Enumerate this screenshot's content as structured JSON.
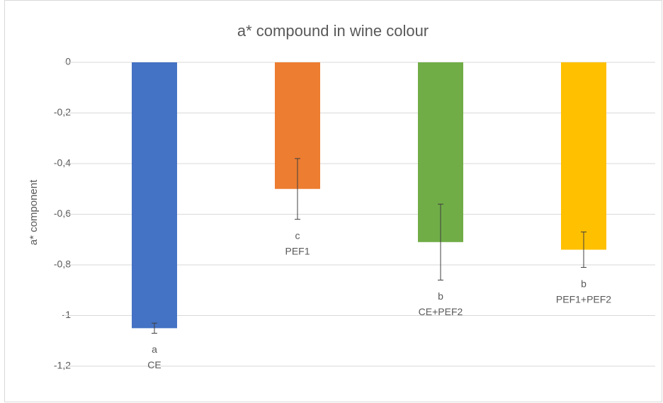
{
  "chart_data": {
    "type": "bar",
    "title": "a* compound in wine colour",
    "y_label": "a* component",
    "categories": [
      "CE",
      "PEF1",
      "CE+PEF2",
      "PEF1+PEF2"
    ],
    "values": [
      -1.05,
      -0.5,
      -0.71,
      -0.74
    ],
    "errors": [
      0.02,
      0.12,
      0.15,
      0.07
    ],
    "annotations": [
      "a",
      "c",
      "b",
      "b"
    ],
    "colors": [
      "#4472c4",
      "#ed7d31",
      "#70ad47",
      "#ffc000"
    ],
    "ylim": [
      -1.2,
      0
    ],
    "yticks": [
      0,
      {
        "value": -0.2,
        "label": "-0,2"
      },
      {
        "value": -0.4,
        "label": "-0,4"
      },
      {
        "value": -0.6,
        "label": "-0,6"
      },
      {
        "value": -0.8,
        "label": "-0,8"
      },
      -1,
      {
        "value": -1.2,
        "label": "-1,2"
      }
    ],
    "grid": true
  }
}
